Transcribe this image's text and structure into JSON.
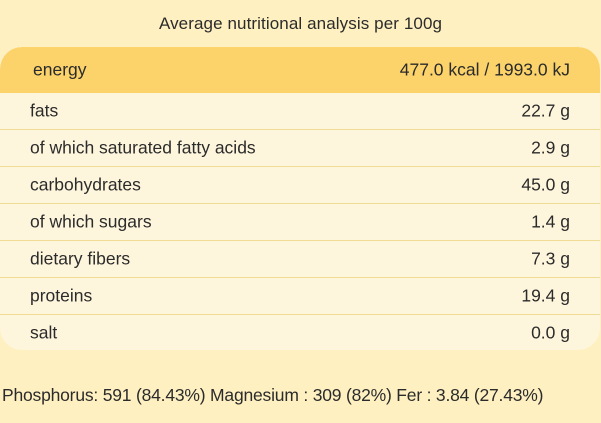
{
  "title": "Average nutritional analysis per 100g",
  "rows": [
    {
      "label": "energy",
      "value": "477.0 kcal / 1993.0 kJ"
    },
    {
      "label": "fats",
      "value": "22.7 g"
    },
    {
      "label": "of which saturated fatty acids",
      "value": "2.9 g"
    },
    {
      "label": "carbohydrates",
      "value": "45.0 g"
    },
    {
      "label": "of which sugars",
      "value": "1.4 g"
    },
    {
      "label": "dietary fibers",
      "value": "7.3 g"
    },
    {
      "label": "proteins",
      "value": "19.4 g"
    },
    {
      "label": "salt",
      "value": "0.0 g"
    }
  ],
  "footer": "Phosphorus: 591 (84.43%) Magnesium : 309 (82%) Fer : 3.84 (27.43%)",
  "colors": {
    "page_background": "#fef0c1",
    "table_background": "#fef6dc",
    "header_row": "#fcd36a",
    "row_divider": "#f1dc96"
  }
}
